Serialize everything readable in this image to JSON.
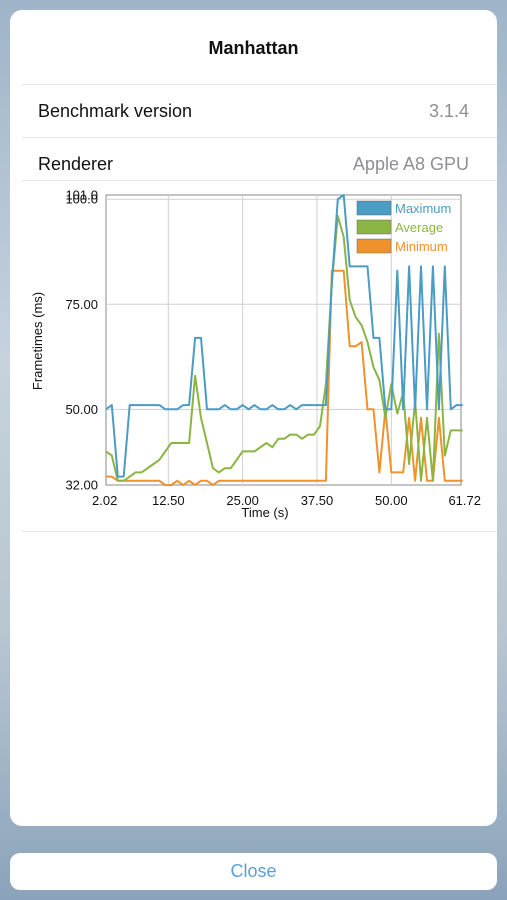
{
  "dialog": {
    "title": "Manhattan",
    "rows": [
      {
        "label": "Benchmark version",
        "value": "3.1.4"
      },
      {
        "label": "Renderer",
        "value": "Apple A8 GPU"
      }
    ],
    "close_label": "Close"
  },
  "colors": {
    "maximum": "#4a9cc4",
    "average": "#8ab543",
    "minimum": "#f0922b",
    "close_text": "#5aa0d8"
  },
  "chart_data": {
    "type": "line",
    "xlabel": "Time (s)",
    "ylabel": "Frametimes (ms)",
    "xlim": [
      2.02,
      61.72
    ],
    "ylim": [
      32.0,
      101.0
    ],
    "xticks": [
      "2.02",
      "12.50",
      "25.00",
      "37.50",
      "50.00",
      "61.72"
    ],
    "yticks": [
      "32.00",
      "50.00",
      "75.00",
      "100.0",
      "101.0"
    ],
    "grid": true,
    "legend_position": "top-right",
    "series": [
      {
        "name": "Maximum",
        "x": [
          2,
          3,
          4,
          5,
          6,
          7,
          8,
          9,
          10,
          11,
          12,
          13,
          14,
          15,
          16,
          17,
          18,
          19,
          20,
          21,
          22,
          23,
          24,
          25,
          26,
          27,
          28,
          29,
          30,
          31,
          32,
          33,
          34,
          35,
          36,
          37,
          38,
          39,
          40,
          41,
          42,
          43,
          44,
          45,
          46,
          47,
          48,
          49,
          50,
          51,
          52,
          53,
          54,
          55,
          56,
          57,
          58,
          59,
          60,
          61,
          62
        ],
        "y": [
          50,
          51,
          34,
          34,
          51,
          51,
          51,
          51,
          51,
          51,
          50,
          50,
          50,
          51,
          51,
          67,
          67,
          50,
          50,
          50,
          51,
          50,
          50,
          51,
          50,
          51,
          50,
          50,
          51,
          50,
          50,
          51,
          50,
          51,
          51,
          51,
          51,
          51,
          80,
          100,
          101,
          84,
          84,
          84,
          84,
          67,
          67,
          50,
          50,
          83,
          50,
          84,
          50,
          84,
          50,
          84,
          50,
          84,
          50,
          51,
          51
        ]
      },
      {
        "name": "Average",
        "x": [
          2,
          3,
          4,
          5,
          6,
          7,
          8,
          9,
          10,
          11,
          12,
          13,
          14,
          15,
          16,
          17,
          18,
          19,
          20,
          21,
          22,
          23,
          24,
          25,
          26,
          27,
          28,
          29,
          30,
          31,
          32,
          33,
          34,
          35,
          36,
          37,
          38,
          39,
          40,
          41,
          42,
          43,
          44,
          45,
          46,
          47,
          48,
          49,
          50,
          51,
          52,
          53,
          54,
          55,
          56,
          57,
          58,
          59,
          60,
          61,
          62
        ],
        "y": [
          40,
          39,
          33,
          33,
          34,
          35,
          35,
          36,
          37,
          38,
          40,
          42,
          42,
          42,
          42,
          58,
          48,
          42,
          36,
          35,
          36,
          36,
          38,
          40,
          40,
          40,
          41,
          42,
          41,
          43,
          43,
          44,
          44,
          43,
          44,
          44,
          46,
          56,
          80,
          96,
          91,
          76,
          72,
          70,
          66,
          60,
          57,
          48,
          56,
          49,
          54,
          37,
          52,
          33,
          48,
          33,
          68,
          39,
          45,
          45,
          45
        ]
      },
      {
        "name": "Minimum",
        "x": [
          2,
          3,
          4,
          5,
          6,
          7,
          8,
          9,
          10,
          11,
          12,
          13,
          14,
          15,
          16,
          17,
          18,
          19,
          20,
          21,
          22,
          23,
          24,
          25,
          26,
          27,
          28,
          29,
          30,
          31,
          32,
          33,
          34,
          35,
          36,
          37,
          38,
          39,
          40,
          41,
          42,
          43,
          44,
          45,
          46,
          47,
          48,
          49,
          50,
          51,
          52,
          53,
          54,
          55,
          56,
          57,
          58,
          59,
          60,
          61,
          62
        ],
        "y": [
          34,
          34,
          33,
          33,
          33,
          33,
          33,
          33,
          33,
          33,
          32,
          32,
          33,
          32,
          33,
          32,
          33,
          33,
          32,
          33,
          33,
          33,
          33,
          33,
          33,
          33,
          33,
          33,
          33,
          33,
          33,
          33,
          33,
          33,
          33,
          33,
          33,
          33,
          83,
          83,
          83,
          65,
          65,
          66,
          50,
          50,
          35,
          50,
          35,
          35,
          35,
          48,
          33,
          48,
          33,
          33,
          48,
          33,
          33,
          33,
          33
        ]
      }
    ]
  }
}
